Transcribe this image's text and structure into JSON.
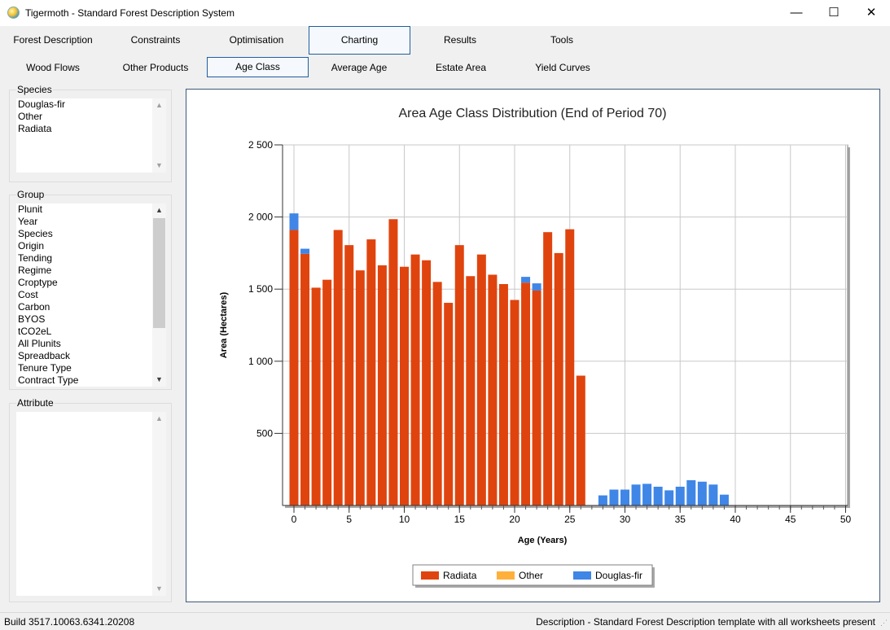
{
  "window": {
    "title": "Tigermoth - Standard Forest Description System",
    "minimize_icon": "—",
    "maximize_icon": "☐",
    "close_icon": "✕"
  },
  "tabs_row1": [
    {
      "label": "Forest Description",
      "active": false
    },
    {
      "label": "Constraints",
      "active": false
    },
    {
      "label": "Optimisation",
      "active": false
    },
    {
      "label": "Charting",
      "active": true
    },
    {
      "label": "Results",
      "active": false
    },
    {
      "label": "Tools",
      "active": false
    }
  ],
  "tabs_row2": [
    {
      "label": "Wood Flows",
      "active": false
    },
    {
      "label": "Other Products",
      "active": false
    },
    {
      "label": "Age Class",
      "active": true
    },
    {
      "label": "Average Age",
      "active": false
    },
    {
      "label": "Estate Area",
      "active": false
    },
    {
      "label": "Yield Curves",
      "active": false
    }
  ],
  "species": {
    "label": "Species",
    "items": [
      "Douglas-fir",
      "Other",
      "Radiata"
    ]
  },
  "group": {
    "label": "Group",
    "items": [
      "Plunit",
      "Year",
      "Species",
      "Origin",
      "Tending",
      "Regime",
      "Croptype",
      "Cost",
      "Carbon",
      "BYOS",
      "tCO2eL",
      "All Plunits",
      "Spreadback",
      "Tenure Type",
      "Contract Type"
    ]
  },
  "attribute": {
    "label": "Attribute",
    "items": []
  },
  "status": {
    "build": "Build 3517.10063.6341.20208",
    "description": "Description - Standard Forest Description template with all worksheets present"
  },
  "chart_data": {
    "type": "bar",
    "stacked": true,
    "title": "Area Age Class Distribution (End of Period 70)",
    "xlabel": "Age (Years)",
    "ylabel": "Area (Hectares)",
    "xlim": [
      0,
      50
    ],
    "ylim": [
      0,
      2500
    ],
    "x_ticks": [
      "0",
      "5",
      "10",
      "15",
      "20",
      "25",
      "30",
      "35",
      "40",
      "45",
      "50"
    ],
    "y_ticks": [
      "500",
      "1 000",
      "1 500",
      "2 000",
      "2 500"
    ],
    "grid": true,
    "legend_position": "bottom-center",
    "categories": [
      0,
      1,
      2,
      3,
      4,
      5,
      6,
      7,
      8,
      9,
      10,
      11,
      12,
      13,
      14,
      15,
      16,
      17,
      18,
      19,
      20,
      21,
      22,
      23,
      24,
      25,
      26,
      27,
      28,
      29,
      30,
      31,
      32,
      33,
      34,
      35,
      36,
      37,
      38,
      39,
      40,
      41,
      42,
      43,
      44,
      45,
      46,
      47,
      48,
      49,
      50
    ],
    "series": [
      {
        "name": "Radiata",
        "color": "#e0440e",
        "values": [
          1910,
          1745,
          1510,
          1565,
          1910,
          1805,
          1630,
          1845,
          1665,
          1985,
          1655,
          1740,
          1700,
          1550,
          1405,
          1805,
          1590,
          1740,
          1600,
          1535,
          1425,
          1545,
          1490,
          1895,
          1750,
          1915,
          900,
          0,
          0,
          0,
          0,
          0,
          0,
          0,
          0,
          0,
          0,
          0,
          0,
          0,
          0,
          0,
          0,
          0,
          0,
          0,
          0,
          0,
          0,
          0,
          0
        ]
      },
      {
        "name": "Other",
        "color": "#ffb03b",
        "values": [
          0,
          0,
          0,
          0,
          0,
          0,
          0,
          0,
          0,
          0,
          0,
          0,
          0,
          0,
          0,
          0,
          0,
          0,
          0,
          0,
          0,
          0,
          0,
          0,
          0,
          0,
          0,
          0,
          0,
          0,
          0,
          0,
          0,
          0,
          0,
          0,
          0,
          0,
          0,
          0,
          0,
          0,
          0,
          0,
          0,
          0,
          0,
          0,
          0,
          0,
          0
        ]
      },
      {
        "name": "Douglas-fir",
        "color": "#3f86e6",
        "values": [
          115,
          35,
          0,
          0,
          0,
          0,
          0,
          0,
          0,
          0,
          0,
          0,
          0,
          0,
          0,
          0,
          0,
          0,
          0,
          0,
          0,
          40,
          50,
          0,
          0,
          0,
          0,
          0,
          70,
          110,
          110,
          145,
          150,
          130,
          105,
          130,
          175,
          165,
          145,
          75,
          0,
          0,
          0,
          0,
          0,
          0,
          0,
          0,
          0,
          0,
          0
        ]
      }
    ]
  }
}
